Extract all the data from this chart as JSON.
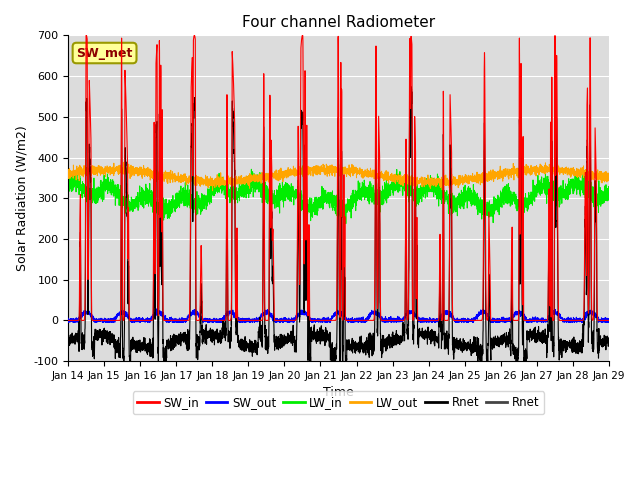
{
  "title": "Four channel Radiometer",
  "xlabel": "Time",
  "ylabel": "Solar Radiation (W/m2)",
  "ylim": [
    -100,
    700
  ],
  "xlim": [
    0,
    15
  ],
  "xtick_labels": [
    "Jan 14",
    "Jan 15",
    "Jan 16",
    "Jan 17",
    "Jan 18",
    "Jan 19",
    "Jan 20",
    "Jan 21",
    "Jan 22",
    "Jan 23",
    "Jan 24",
    "Jan 25",
    "Jan 26",
    "Jan 27",
    "Jan 28",
    "Jan 29"
  ],
  "ytick_values": [
    -100,
    0,
    100,
    200,
    300,
    400,
    500,
    600,
    700
  ],
  "annotation_text": "SW_met",
  "annotation_color": "#8B0000",
  "annotation_bg": "#FFFF99",
  "annotation_edge": "#999900",
  "bg_color": "#DCDCDC",
  "colors": {
    "SW_in": "#FF0000",
    "SW_out": "#0000FF",
    "LW_in": "#00EE00",
    "LW_out": "#FFA500",
    "Rnet_black": "#000000",
    "Rnet_dark": "#444444"
  },
  "legend_entries": [
    "SW_in",
    "SW_out",
    "LW_in",
    "LW_out",
    "Rnet",
    "Rnet"
  ],
  "figsize": [
    6.4,
    4.8
  ],
  "dpi": 100
}
